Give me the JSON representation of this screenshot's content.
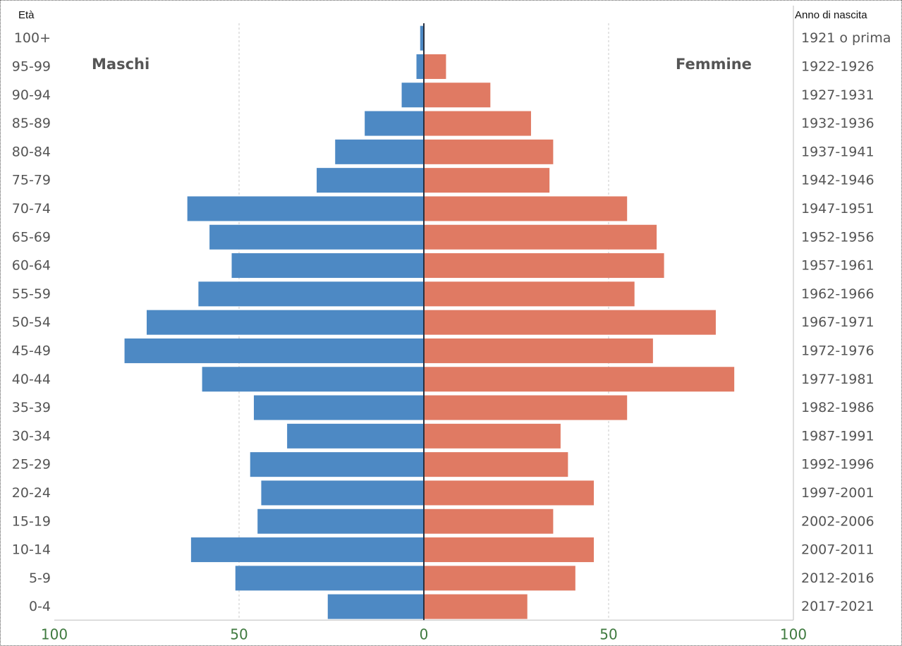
{
  "chart_data": {
    "type": "bar",
    "orientation": "horizontal",
    "subtype": "population-pyramid",
    "left_axis_title": "Età",
    "right_axis_title": "Anno di nascita",
    "xlim": [
      -100,
      100
    ],
    "x_ticks": [
      -100,
      -50,
      0,
      50,
      100
    ],
    "x_tick_labels": [
      "100",
      "50",
      "0",
      "50",
      "100"
    ],
    "grid": "vertical dashed at ±50",
    "categories": [
      "0-4",
      "5-9",
      "10-14",
      "15-19",
      "20-24",
      "25-29",
      "30-34",
      "35-39",
      "40-44",
      "45-49",
      "50-54",
      "55-59",
      "60-64",
      "65-69",
      "70-74",
      "75-79",
      "80-84",
      "85-89",
      "90-94",
      "95-99",
      "100+"
    ],
    "birth_years": [
      "2017-2021",
      "2012-2016",
      "2007-2011",
      "2002-2006",
      "1997-2001",
      "1992-1996",
      "1987-1991",
      "1982-1986",
      "1977-1981",
      "1972-1976",
      "1967-1971",
      "1962-1966",
      "1957-1961",
      "1952-1956",
      "1947-1951",
      "1942-1946",
      "1937-1941",
      "1932-1936",
      "1927-1931",
      "1922-1926",
      "1921 o prima"
    ],
    "series": [
      {
        "name": "Maschi",
        "side": "left",
        "color": "#4d89c4",
        "values": [
          26,
          51,
          63,
          45,
          44,
          47,
          37,
          46,
          60,
          81,
          75,
          61,
          52,
          58,
          64,
          29,
          24,
          16,
          6,
          2,
          1
        ]
      },
      {
        "name": "Femmine",
        "side": "right",
        "color": "#e07a63",
        "values": [
          28,
          41,
          46,
          35,
          46,
          39,
          37,
          55,
          84,
          62,
          79,
          57,
          65,
          63,
          55,
          34,
          35,
          29,
          18,
          6,
          0
        ]
      }
    ]
  }
}
